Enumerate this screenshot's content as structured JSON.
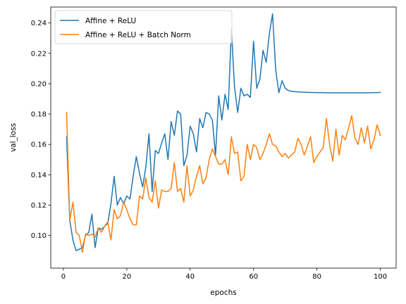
{
  "chart_data": {
    "type": "line",
    "xlabel": "epochs",
    "ylabel": "val_loss",
    "xlim": [
      -4,
      105
    ],
    "ylim": [
      0.0785,
      0.2505
    ],
    "xticks": [
      0,
      20,
      40,
      60,
      80,
      100
    ],
    "yticks": [
      0.1,
      0.12,
      0.14,
      0.16,
      0.18,
      0.2,
      0.22,
      0.24
    ],
    "ytick_labels": [
      "0.10",
      "0.12",
      "0.14",
      "0.16",
      "0.18",
      "0.20",
      "0.22",
      "0.24"
    ],
    "grid": false,
    "legend_position": "top-left",
    "series": [
      {
        "name": "Affine + ReLU",
        "color": "#1f77b4",
        "x": [
          1,
          2,
          3,
          4,
          5,
          6,
          7,
          8,
          9,
          10,
          11,
          12,
          13,
          14,
          15,
          16,
          17,
          18,
          19,
          20,
          21,
          22,
          23,
          24,
          25,
          26,
          27,
          28,
          29,
          30,
          31,
          32,
          33,
          34,
          35,
          36,
          37,
          38,
          39,
          40,
          41,
          42,
          43,
          44,
          45,
          46,
          47,
          48,
          49,
          50,
          51,
          52,
          53,
          54,
          55,
          56,
          57,
          58,
          59,
          60,
          61,
          62,
          63,
          64,
          65,
          66,
          67,
          68,
          69,
          70,
          71,
          72,
          73,
          74,
          75,
          76,
          77,
          78,
          79,
          80,
          81,
          82,
          83,
          84,
          85,
          86,
          87,
          88,
          89,
          90,
          91,
          92,
          93,
          94,
          95,
          96,
          97,
          98,
          99,
          100
        ],
        "values": [
          0.165,
          0.11,
          0.097,
          0.09,
          0.091,
          0.092,
          0.1,
          0.102,
          0.114,
          0.092,
          0.105,
          0.104,
          0.106,
          0.108,
          0.121,
          0.139,
          0.12,
          0.125,
          0.121,
          0.126,
          0.124,
          0.139,
          0.152,
          0.141,
          0.132,
          0.145,
          0.167,
          0.129,
          0.156,
          0.154,
          0.161,
          0.167,
          0.15,
          0.175,
          0.166,
          0.182,
          0.18,
          0.146,
          0.153,
          0.172,
          0.167,
          0.155,
          0.177,
          0.171,
          0.181,
          0.18,
          0.176,
          0.153,
          0.192,
          0.176,
          0.193,
          0.183,
          0.236,
          0.198,
          0.181,
          0.197,
          0.192,
          0.193,
          0.191,
          0.228,
          0.197,
          0.203,
          0.222,
          0.214,
          0.233,
          0.246,
          0.209,
          0.194,
          0.202,
          0.197,
          0.1955,
          0.195,
          0.1948,
          0.1946,
          0.1945,
          0.1944,
          0.1943,
          0.1942,
          0.1942,
          0.1941,
          0.1941,
          0.1941,
          0.194,
          0.194,
          0.194,
          0.194,
          0.194,
          0.194,
          0.194,
          0.194,
          0.194,
          0.194,
          0.194,
          0.194,
          0.194,
          0.194,
          0.1941,
          0.1941,
          0.1941,
          0.1942
        ]
      },
      {
        "name": "Affine + ReLU + Batch Norm",
        "color": "#ff7f0e",
        "x": [
          1,
          2,
          3,
          4,
          5,
          6,
          7,
          8,
          9,
          10,
          11,
          12,
          13,
          14,
          15,
          16,
          17,
          18,
          19,
          20,
          21,
          22,
          23,
          24,
          25,
          26,
          27,
          28,
          29,
          30,
          31,
          32,
          33,
          34,
          35,
          36,
          37,
          38,
          39,
          40,
          41,
          42,
          43,
          44,
          45,
          46,
          47,
          48,
          49,
          50,
          51,
          52,
          53,
          54,
          55,
          56,
          57,
          58,
          59,
          60,
          61,
          62,
          63,
          64,
          65,
          66,
          67,
          68,
          69,
          70,
          71,
          72,
          73,
          74,
          75,
          76,
          77,
          78,
          79,
          80,
          81,
          82,
          83,
          84,
          85,
          86,
          87,
          88,
          89,
          90,
          91,
          92,
          93,
          94,
          95,
          96,
          97,
          98,
          99,
          100
        ],
        "values": [
          0.181,
          0.11,
          0.122,
          0.102,
          0.1,
          0.089,
          0.101,
          0.1,
          0.101,
          0.099,
          0.105,
          0.102,
          0.106,
          0.109,
          0.097,
          0.117,
          0.111,
          0.113,
          0.122,
          0.117,
          0.111,
          0.107,
          0.107,
          0.126,
          0.124,
          0.138,
          0.125,
          0.122,
          0.136,
          0.118,
          0.13,
          0.129,
          0.129,
          0.131,
          0.148,
          0.129,
          0.131,
          0.122,
          0.146,
          0.126,
          0.13,
          0.139,
          0.146,
          0.134,
          0.138,
          0.15,
          0.157,
          0.152,
          0.147,
          0.147,
          0.15,
          0.14,
          0.165,
          0.154,
          0.155,
          0.136,
          0.139,
          0.16,
          0.15,
          0.16,
          0.158,
          0.15,
          0.154,
          0.16,
          0.167,
          0.16,
          0.159,
          0.155,
          0.152,
          0.154,
          0.151,
          0.153,
          0.155,
          0.164,
          0.16,
          0.153,
          0.159,
          0.165,
          0.148,
          0.152,
          0.155,
          0.158,
          0.177,
          0.16,
          0.149,
          0.17,
          0.153,
          0.166,
          0.163,
          0.171,
          0.179,
          0.164,
          0.16,
          0.171,
          0.161,
          0.172,
          0.157,
          0.163,
          0.173,
          0.166
        ]
      }
    ]
  }
}
